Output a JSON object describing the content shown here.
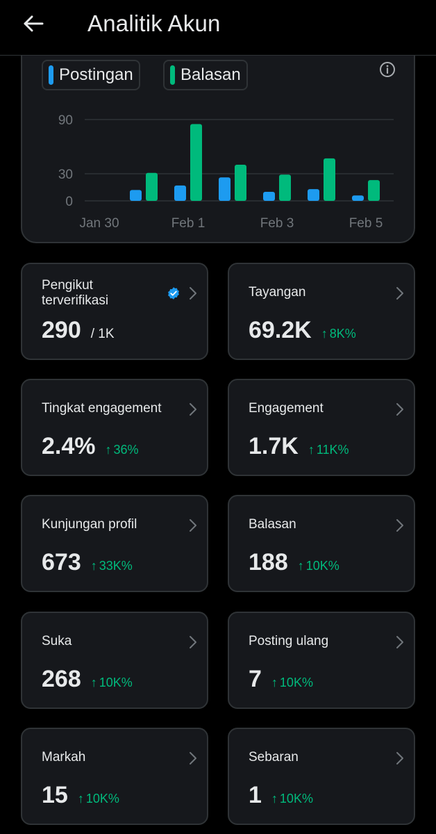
{
  "header": {
    "title": "Analitik Akun"
  },
  "legend": {
    "posts": {
      "label": "Postingan",
      "color": "#1d9bf0"
    },
    "replies": {
      "label": "Balasan",
      "color": "#00ba7c"
    }
  },
  "chart_data": {
    "type": "bar",
    "categories": [
      "Jan 30",
      "Jan 31",
      "Feb 1",
      "Feb 2",
      "Feb 3",
      "Feb 4",
      "Feb 5"
    ],
    "tick_labels": [
      "Jan 30",
      "Feb 1",
      "Feb 3",
      "Feb 5"
    ],
    "y_ticks": [
      "0",
      "30",
      "90"
    ],
    "ylim": [
      0,
      90
    ],
    "series": [
      {
        "name": "Postingan",
        "color": "#1d9bf0",
        "values": [
          0,
          12,
          17,
          26,
          10,
          13,
          6
        ]
      },
      {
        "name": "Balasan",
        "color": "#00ba7c",
        "values": [
          0,
          31,
          85,
          40,
          29,
          47,
          23
        ]
      }
    ],
    "grid": true
  },
  "metrics": [
    {
      "label": "Pengikut terverifikasi",
      "value": "290",
      "sub": "/ 1K",
      "change": "",
      "verified": true
    },
    {
      "label": "Tayangan",
      "value": "69.2K",
      "sub": "",
      "change": "8K%"
    },
    {
      "label": "Tingkat engagement",
      "value": "2.4%",
      "sub": "",
      "change": "36%"
    },
    {
      "label": "Engagement",
      "value": "1.7K",
      "sub": "",
      "change": "11K%"
    },
    {
      "label": "Kunjungan profil",
      "value": "673",
      "sub": "",
      "change": "33K%"
    },
    {
      "label": "Balasan",
      "value": "188",
      "sub": "",
      "change": "10K%"
    },
    {
      "label": "Suka",
      "value": "268",
      "sub": "",
      "change": "10K%"
    },
    {
      "label": "Posting ulang",
      "value": "7",
      "sub": "",
      "change": "10K%"
    },
    {
      "label": "Markah",
      "value": "15",
      "sub": "",
      "change": "10K%"
    },
    {
      "label": "Sebaran",
      "value": "1",
      "sub": "",
      "change": "10K%"
    }
  ],
  "arrow_up": "↑"
}
